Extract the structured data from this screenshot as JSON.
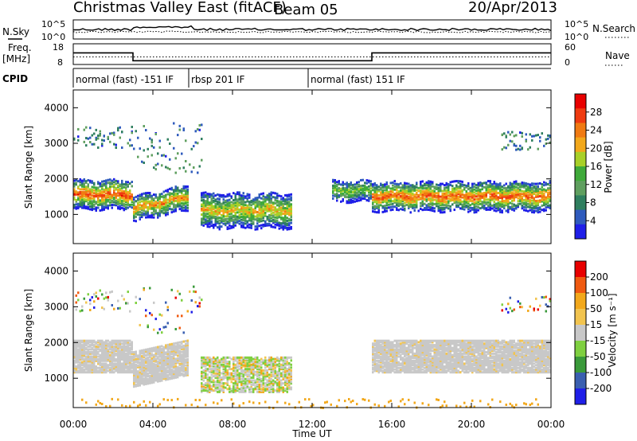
{
  "header": {
    "station": "Christmas Valley East (fitACF)",
    "beam": "Beam 05",
    "date": "20/Apr/2013"
  },
  "side_labels": {
    "nsky": "N.Sky",
    "freq_line1": "Freq.",
    "freq_line2": "[MHz]",
    "cpid": "CPID",
    "nsearch": "N.Search",
    "nave": "Nave"
  },
  "noise_panel": {
    "left_ticks": [
      "10^5",
      "10^0"
    ],
    "right_ticks": [
      "10^5",
      "10^0"
    ]
  },
  "freq_panel": {
    "left_ticks": [
      "18",
      "8"
    ],
    "right_ticks": [
      "60",
      "0"
    ],
    "segments": [
      {
        "start_h": 0,
        "end_h": 3,
        "freq_mhz": 13.6
      },
      {
        "start_h": 3,
        "end_h": 15,
        "freq_mhz": 9.8
      },
      {
        "start_h": 15,
        "end_h": 24,
        "freq_mhz": 13.6
      }
    ],
    "nave": 22
  },
  "cpid_panel": {
    "modes": [
      {
        "label": "normal (fast) -151 IF",
        "start_h": 0,
        "end_h": 5.8
      },
      {
        "label": "rbsp 201 IF",
        "start_h": 5.8,
        "end_h": 11.8
      },
      {
        "label": "normal (fast) 151 IF",
        "start_h": 11.8,
        "end_h": 24
      }
    ]
  },
  "chart_data": [
    {
      "type": "heatmap",
      "name": "power",
      "ylabel": "Slant Range [km]",
      "y_ticks": [
        "4000",
        "3000",
        "2000",
        "1000"
      ],
      "ylim": [
        180,
        4500
      ],
      "colorbar_label": "Power [dB]",
      "colorbar_ticks": [
        "28",
        "24",
        "20",
        "16",
        "12",
        "8",
        "4"
      ],
      "colorbar_range": [
        0,
        30
      ],
      "colors": [
        "#1f1fe8",
        "#2f5bbd",
        "#2f7f5f",
        "#5f9f5f",
        "#3faa3a",
        "#a8d028",
        "#f2a81b",
        "#f07a12",
        "#ef3b10",
        "#e80000"
      ],
      "echo_bands": [
        {
          "start_h": 0.0,
          "end_h": 3.0,
          "center_km": 1600,
          "width_km": 420,
          "peak_db": 26
        },
        {
          "start_h": 3.0,
          "end_h": 5.8,
          "center_km": 1200,
          "width_km": 360,
          "peak_db": 22
        },
        {
          "start_h": 6.4,
          "end_h": 11.0,
          "center_km": 1150,
          "width_km": 500,
          "peak_db": 20
        },
        {
          "start_h": 13.0,
          "end_h": 15.0,
          "center_km": 1700,
          "width_km": 300,
          "peak_db": 16
        },
        {
          "start_h": 15.0,
          "end_h": 24.0,
          "center_km": 1550,
          "width_km": 420,
          "peak_db": 25
        }
      ],
      "scatter_bands": [
        {
          "start_h": 0.0,
          "end_h": 3.0,
          "center_km": 3200,
          "width_km": 300
        },
        {
          "start_h": 3.0,
          "end_h": 6.5,
          "center_km": 2900,
          "width_km": 700
        },
        {
          "start_h": 21.5,
          "end_h": 24.0,
          "center_km": 3100,
          "width_km": 250
        }
      ]
    },
    {
      "type": "heatmap",
      "name": "velocity",
      "ylabel": "Slant Range [km]",
      "y_ticks": [
        "4000",
        "3000",
        "2000",
        "1000"
      ],
      "ylim": [
        180,
        4500
      ],
      "xlabel": "Time UT",
      "x_ticks": [
        "00:00",
        "04:00",
        "08:00",
        "12:00",
        "16:00",
        "20:00",
        "00:00"
      ],
      "xlim_hours": [
        0,
        24
      ],
      "colorbar_label": "Velocity [m s⁻¹]",
      "colorbar_ticks": [
        "200",
        "100",
        "50",
        "15",
        "-15",
        "-50",
        "-100",
        "-200"
      ],
      "colorbar_range": [
        -250,
        250
      ],
      "colors": [
        "#e80000",
        "#f05a10",
        "#f2a81b",
        "#f2c44f",
        "#c8c8c8",
        "#7fd040",
        "#3a9a3a",
        "#3a5fb0",
        "#1f1fe8"
      ],
      "gs_bands": [
        {
          "start_h": 0.0,
          "end_h": 3.0,
          "center_km": 1650,
          "width_km": 450
        },
        {
          "start_h": 3.0,
          "end_h": 5.8,
          "center_km": 1300,
          "width_km": 500
        },
        {
          "start_h": 15.0,
          "end_h": 24.0,
          "center_km": 1650,
          "width_km": 450
        }
      ]
    }
  ]
}
